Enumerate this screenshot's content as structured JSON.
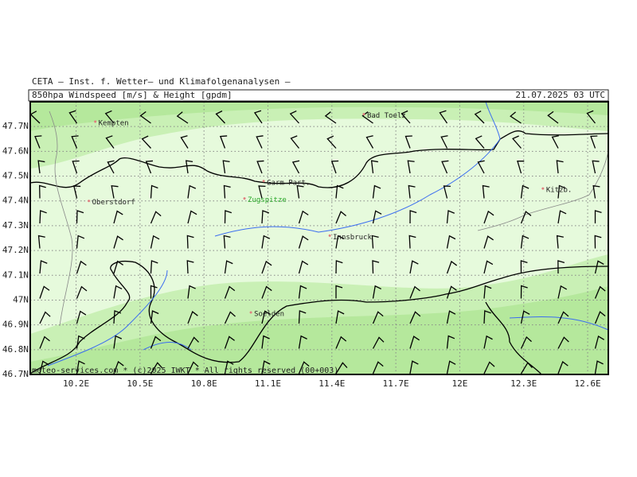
{
  "header": {
    "institute": "CETA – Inst. f. Wetter– und Klimafolgenanalysen –",
    "product": "850hpa Windspeed [m/s] & Height [gpdm]",
    "valid": "21.07.2025 03 UTC"
  },
  "footer": "meteo-services.com * (c)2025 IWKT * All rights reserved (00+003)",
  "map": {
    "xlim": [
      9.985,
      12.697
    ],
    "ylim": [
      46.7,
      47.8
    ],
    "xticks": [
      {
        "value": 10.2,
        "label": "10.2E"
      },
      {
        "value": 10.5,
        "label": "10.5E"
      },
      {
        "value": 10.8,
        "label": "10.8E"
      },
      {
        "value": 11.1,
        "label": "11.1E"
      },
      {
        "value": 11.4,
        "label": "11.4E"
      },
      {
        "value": 11.7,
        "label": "11.7E"
      },
      {
        "value": 12,
        "label": "12E"
      },
      {
        "value": 12.3,
        "label": "12.3E"
      },
      {
        "value": 12.6,
        "label": "12.6E"
      }
    ],
    "yticks": [
      {
        "value": 46.7,
        "label": "46.7N"
      },
      {
        "value": 46.8,
        "label": "46.8N"
      },
      {
        "value": 46.9,
        "label": "46.9N"
      },
      {
        "value": 47,
        "label": "47N"
      },
      {
        "value": 47.1,
        "label": "47.1N"
      },
      {
        "value": 47.2,
        "label": "47.2N"
      },
      {
        "value": 47.3,
        "label": "47.3N"
      },
      {
        "value": 47.4,
        "label": "47.4N"
      },
      {
        "value": 47.5,
        "label": "47.5N"
      },
      {
        "value": 47.6,
        "label": "47.6N"
      },
      {
        "value": 47.7,
        "label": "47.7N"
      }
    ],
    "places": [
      {
        "name": "Kempten",
        "lon": 10.29,
        "lat": 47.72
      },
      {
        "name": "Bad Toelz",
        "lon": 11.55,
        "lat": 47.75
      },
      {
        "name": "Garm-Part.",
        "lon": 11.08,
        "lat": 47.48
      },
      {
        "name": "Zugspitze",
        "lon": 10.99,
        "lat": 47.41
      },
      {
        "name": "Oberstdorf",
        "lon": 10.26,
        "lat": 47.4
      },
      {
        "name": "Kitzb.",
        "lon": 12.39,
        "lat": 47.45
      },
      {
        "name": "Innsbruck",
        "lon": 11.39,
        "lat": 47.26
      },
      {
        "name": "Soelden",
        "lon": 11.02,
        "lat": 46.95
      }
    ]
  }
}
